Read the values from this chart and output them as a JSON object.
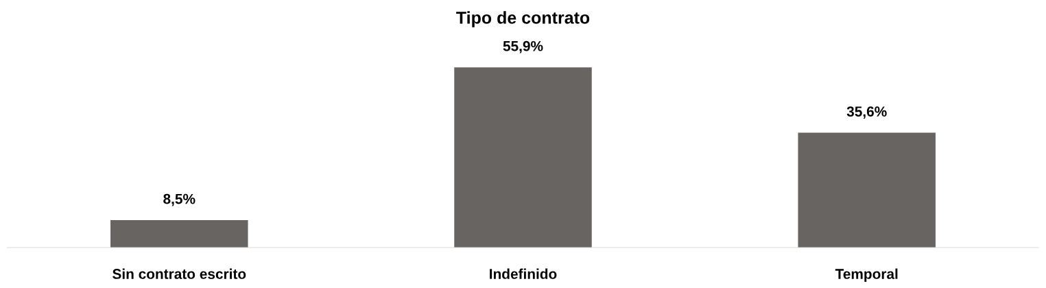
{
  "chart_data": {
    "type": "bar",
    "title": "Tipo de contrato",
    "categories": [
      "Sin contrato escrito",
      "Indefinido",
      "Temporal"
    ],
    "values": [
      8.5,
      55.9,
      35.6
    ],
    "value_labels": [
      "8,5%",
      "55,9%",
      "35,6%"
    ],
    "color": "#686462",
    "grid": false,
    "legend": false
  }
}
